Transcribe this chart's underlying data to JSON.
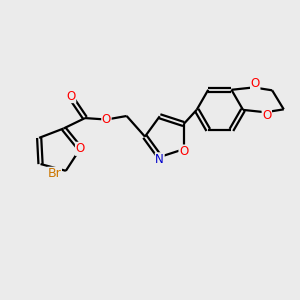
{
  "background_color": "#ebebeb",
  "bond_color": "#000000",
  "line_width": 1.6,
  "atom_colors": {
    "O": "#ff0000",
    "N": "#0000cc",
    "Br": "#cc7700",
    "C": "#000000"
  },
  "font_size": 8.5,
  "figsize": [
    3.0,
    3.0
  ],
  "dpi": 100
}
